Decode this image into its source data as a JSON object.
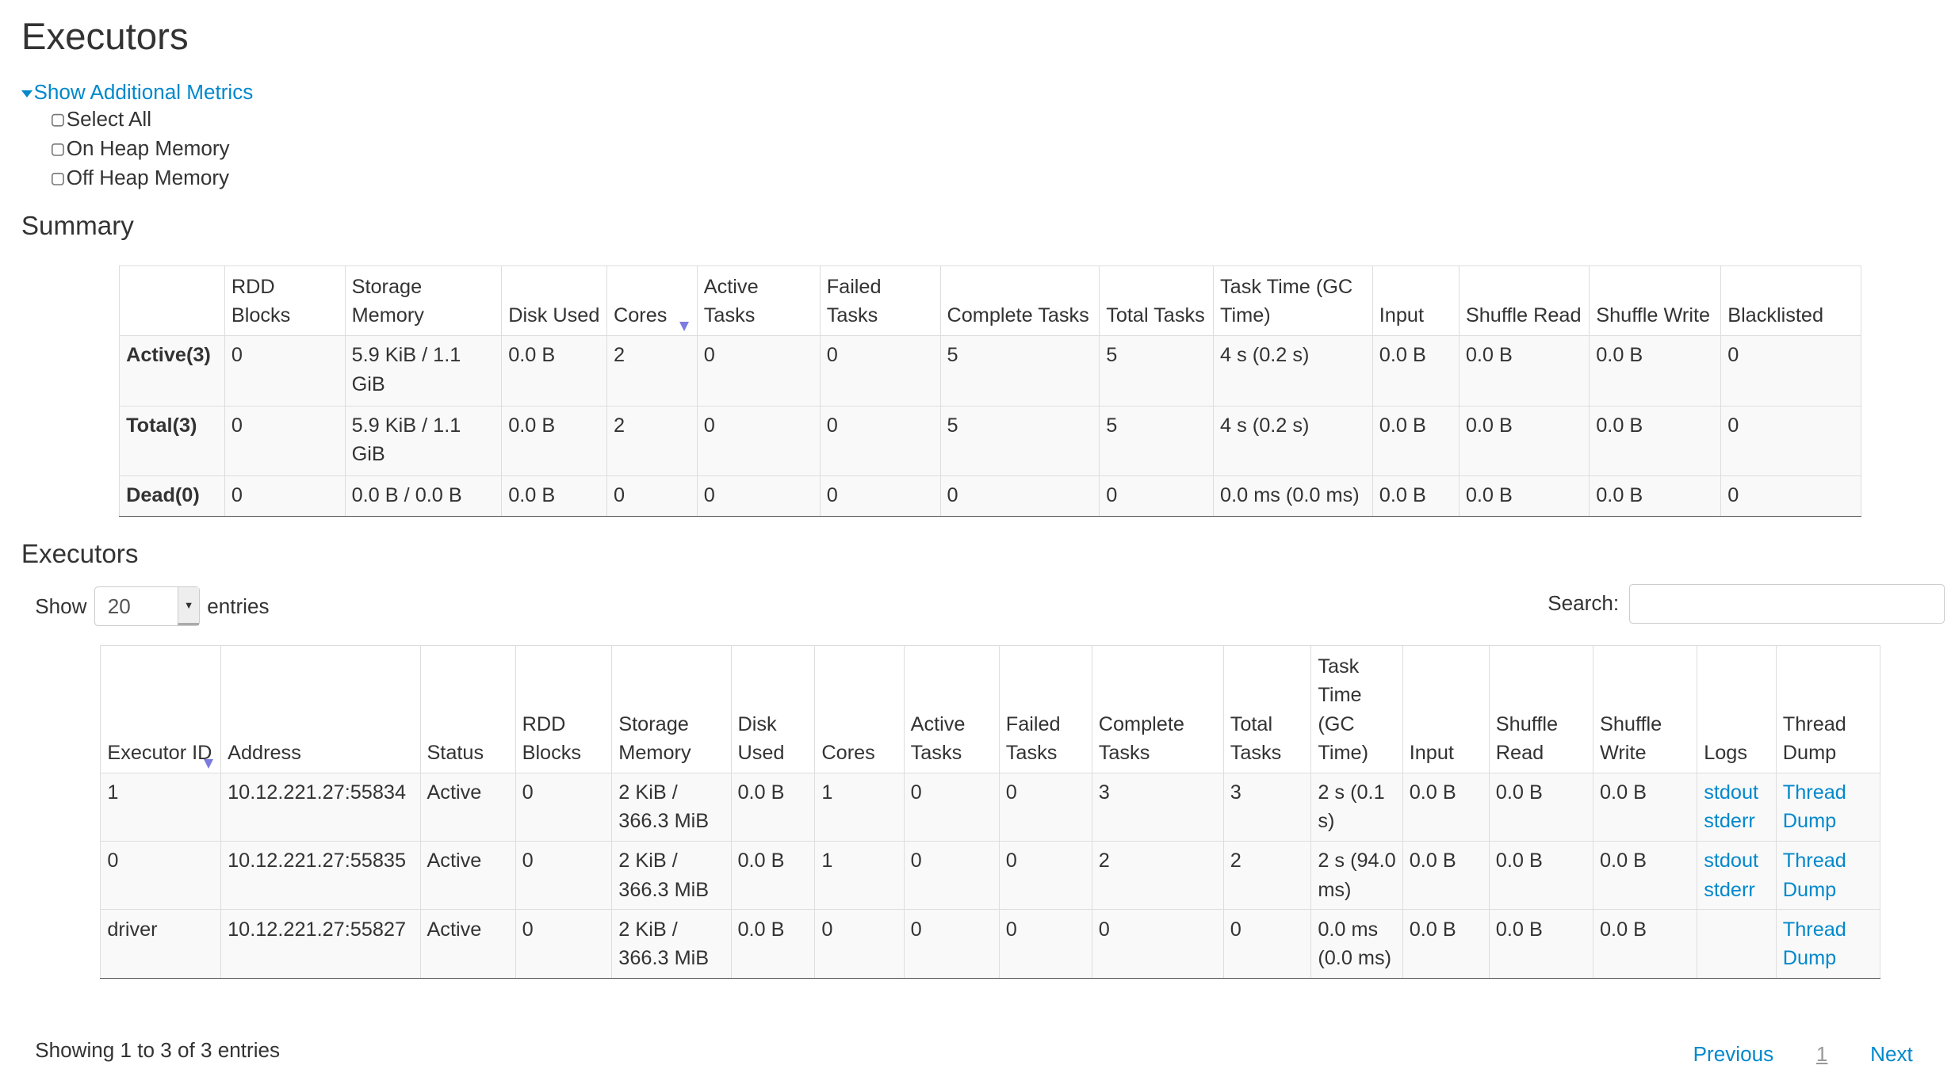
{
  "page_title": "Executors",
  "metrics": {
    "toggle_label": "Show Additional Metrics",
    "options": [
      "Select All",
      "On Heap Memory",
      "Off Heap Memory"
    ]
  },
  "summary": {
    "title": "Summary",
    "columns": [
      "",
      "RDD Blocks",
      "Storage Memory",
      "Disk Used",
      "Cores",
      "Active Tasks",
      "Failed Tasks",
      "Complete Tasks",
      "Total Tasks",
      "Task Time (GC Time)",
      "Input",
      "Shuffle Read",
      "Shuffle Write",
      "Blacklisted"
    ],
    "sorted_column": "Cores",
    "rows": [
      [
        "Active(3)",
        "0",
        "5.9 KiB / 1.1 GiB",
        "0.0 B",
        "2",
        "0",
        "0",
        "5",
        "5",
        "4 s (0.2 s)",
        "0.0 B",
        "0.0 B",
        "0.0 B",
        "0"
      ],
      [
        "Total(3)",
        "0",
        "5.9 KiB / 1.1 GiB",
        "0.0 B",
        "2",
        "0",
        "0",
        "5",
        "5",
        "4 s (0.2 s)",
        "0.0 B",
        "0.0 B",
        "0.0 B",
        "0"
      ],
      [
        "Dead(0)",
        "0",
        "0.0 B / 0.0 B",
        "0.0 B",
        "0",
        "0",
        "0",
        "0",
        "0",
        "0.0 ms (0.0 ms)",
        "0.0 B",
        "0.0 B",
        "0.0 B",
        "0"
      ]
    ]
  },
  "executors": {
    "title": "Executors",
    "show_label": "Show",
    "page_size": "20",
    "entries_label": "entries",
    "search_label": "Search:",
    "search_value": "",
    "columns": [
      "Executor ID",
      "Address",
      "Status",
      "RDD Blocks",
      "Storage Memory",
      "Disk Used",
      "Cores",
      "Active Tasks",
      "Failed Tasks",
      "Complete Tasks",
      "Total Tasks",
      "Task Time (GC Time)",
      "Input",
      "Shuffle Read",
      "Shuffle Write",
      "Logs",
      "Thread Dump"
    ],
    "sorted_column": "Executor ID",
    "rows": [
      {
        "cells": [
          "1",
          "10.12.221.27:55834",
          "Active",
          "0",
          "2 KiB / 366.3 MiB",
          "0.0 B",
          "1",
          "0",
          "0",
          "3",
          "3",
          "2 s (0.1 s)",
          "0.0 B",
          "0.0 B",
          "0.0 B"
        ],
        "logs": [
          "stdout",
          "stderr"
        ],
        "thread_dump": "Thread Dump"
      },
      {
        "cells": [
          "0",
          "10.12.221.27:55835",
          "Active",
          "0",
          "2 KiB / 366.3 MiB",
          "0.0 B",
          "1",
          "0",
          "0",
          "2",
          "2",
          "2 s (94.0 ms)",
          "0.0 B",
          "0.0 B",
          "0.0 B"
        ],
        "logs": [
          "stdout",
          "stderr"
        ],
        "thread_dump": "Thread Dump"
      },
      {
        "cells": [
          "driver",
          "10.12.221.27:55827",
          "Active",
          "0",
          "2 KiB / 366.3 MiB",
          "0.0 B",
          "0",
          "0",
          "0",
          "0",
          "0",
          "0.0 ms (0.0 ms)",
          "0.0 B",
          "0.0 B",
          "0.0 B"
        ],
        "logs": [],
        "thread_dump": "Thread Dump"
      }
    ],
    "info": "Showing 1 to 3 of 3 entries",
    "pagination": {
      "previous": "Previous",
      "current": "1",
      "next": "Next"
    }
  },
  "colors": {
    "link": "#0088cc",
    "text": "#333333",
    "sort_arrow": "#7b7be0"
  }
}
